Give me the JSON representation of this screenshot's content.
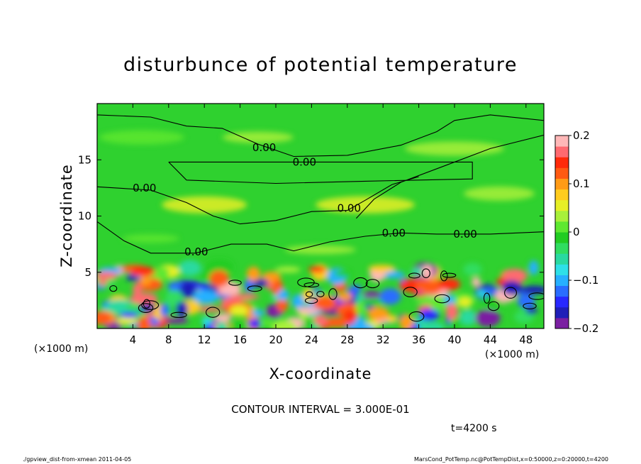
{
  "chart_data": {
    "type": "heatmap",
    "title": "disturbunce of potential temperature",
    "xlabel": "X-coordinate",
    "ylabel": "Z-coordinate",
    "x_unit": "(×1000 m)",
    "xlim": [
      0,
      50
    ],
    "ylim": [
      0,
      20
    ],
    "x_ticks": [
      4,
      8,
      12,
      16,
      20,
      24,
      28,
      32,
      36,
      40,
      44,
      48
    ],
    "y_ticks": [
      5,
      10,
      15
    ],
    "colorbar": {
      "min": -0.2,
      "max": 0.2,
      "tick_values": [
        0.2,
        0.1,
        0,
        -0.1,
        -0.2
      ],
      "tick_labels": [
        "0.2",
        "0.1",
        "0",
        "−0.1",
        "−0.2"
      ],
      "colors": [
        "#7b1fa2",
        "#1f1fb8",
        "#2828ff",
        "#2a6dff",
        "#27b0ff",
        "#2ee0e8",
        "#29d9a0",
        "#30dd60",
        "#22cc22",
        "#5ee830",
        "#a8f03a",
        "#e6ef26",
        "#ffcc1e",
        "#ff9b16",
        "#ff5a12",
        "#ff2a0a",
        "#ff6a70",
        "#ffb8b8"
      ]
    },
    "contour_labels": [
      {
        "text": "0.00",
        "x": 18.7,
        "z": 16.1
      },
      {
        "text": "0.00",
        "x": 23.2,
        "z": 14.8
      },
      {
        "text": "0.00",
        "x": 5.3,
        "z": 12.5
      },
      {
        "text": "0.00",
        "x": 28.2,
        "z": 10.7
      },
      {
        "text": "0.00",
        "x": 33.2,
        "z": 8.5
      },
      {
        "text": "0.00",
        "x": 41.2,
        "z": 8.4
      },
      {
        "text": "0.00",
        "x": 11.1,
        "z": 6.8
      }
    ],
    "contour_interval_text": "CONTOUR INTERVAL = 3.000E-01",
    "time_text": "t=4200 s"
  },
  "footer": {
    "left": "./gpview_dist-from-xmean  2011-04-05",
    "right": "MarsCond_PotTemp.nc@PotTempDist,x=0:50000,z=0:20000,t=4200"
  }
}
